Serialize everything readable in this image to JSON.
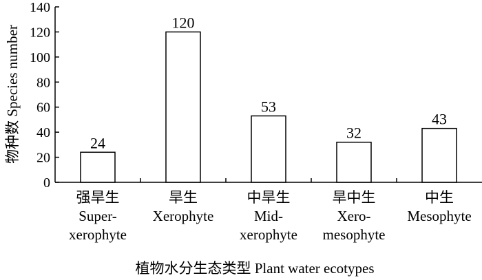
{
  "chart_data": {
    "type": "bar",
    "categories": [
      [
        "强旱生",
        "Super-",
        "xerophyte"
      ],
      [
        "旱生",
        "Xerophyte"
      ],
      [
        "中旱生",
        "Mid-",
        "xerophyte"
      ],
      [
        "旱中生",
        "Xero-",
        "mesophyte"
      ],
      [
        "中生",
        "Mesophyte"
      ]
    ],
    "values": [
      24,
      120,
      53,
      32,
      43
    ],
    "data_labels": [
      "24",
      "120",
      "53",
      "32",
      "43"
    ],
    "xlabel": "植物水分生态类型 Plant water ecotypes",
    "ylabel": "物种数 Species number",
    "ylim": [
      0,
      140
    ],
    "yticks": [
      0,
      20,
      40,
      60,
      80,
      100,
      120,
      140
    ],
    "grid": false,
    "legend": "none",
    "bar_fill": "#ffffff",
    "bar_stroke": "#000000"
  }
}
